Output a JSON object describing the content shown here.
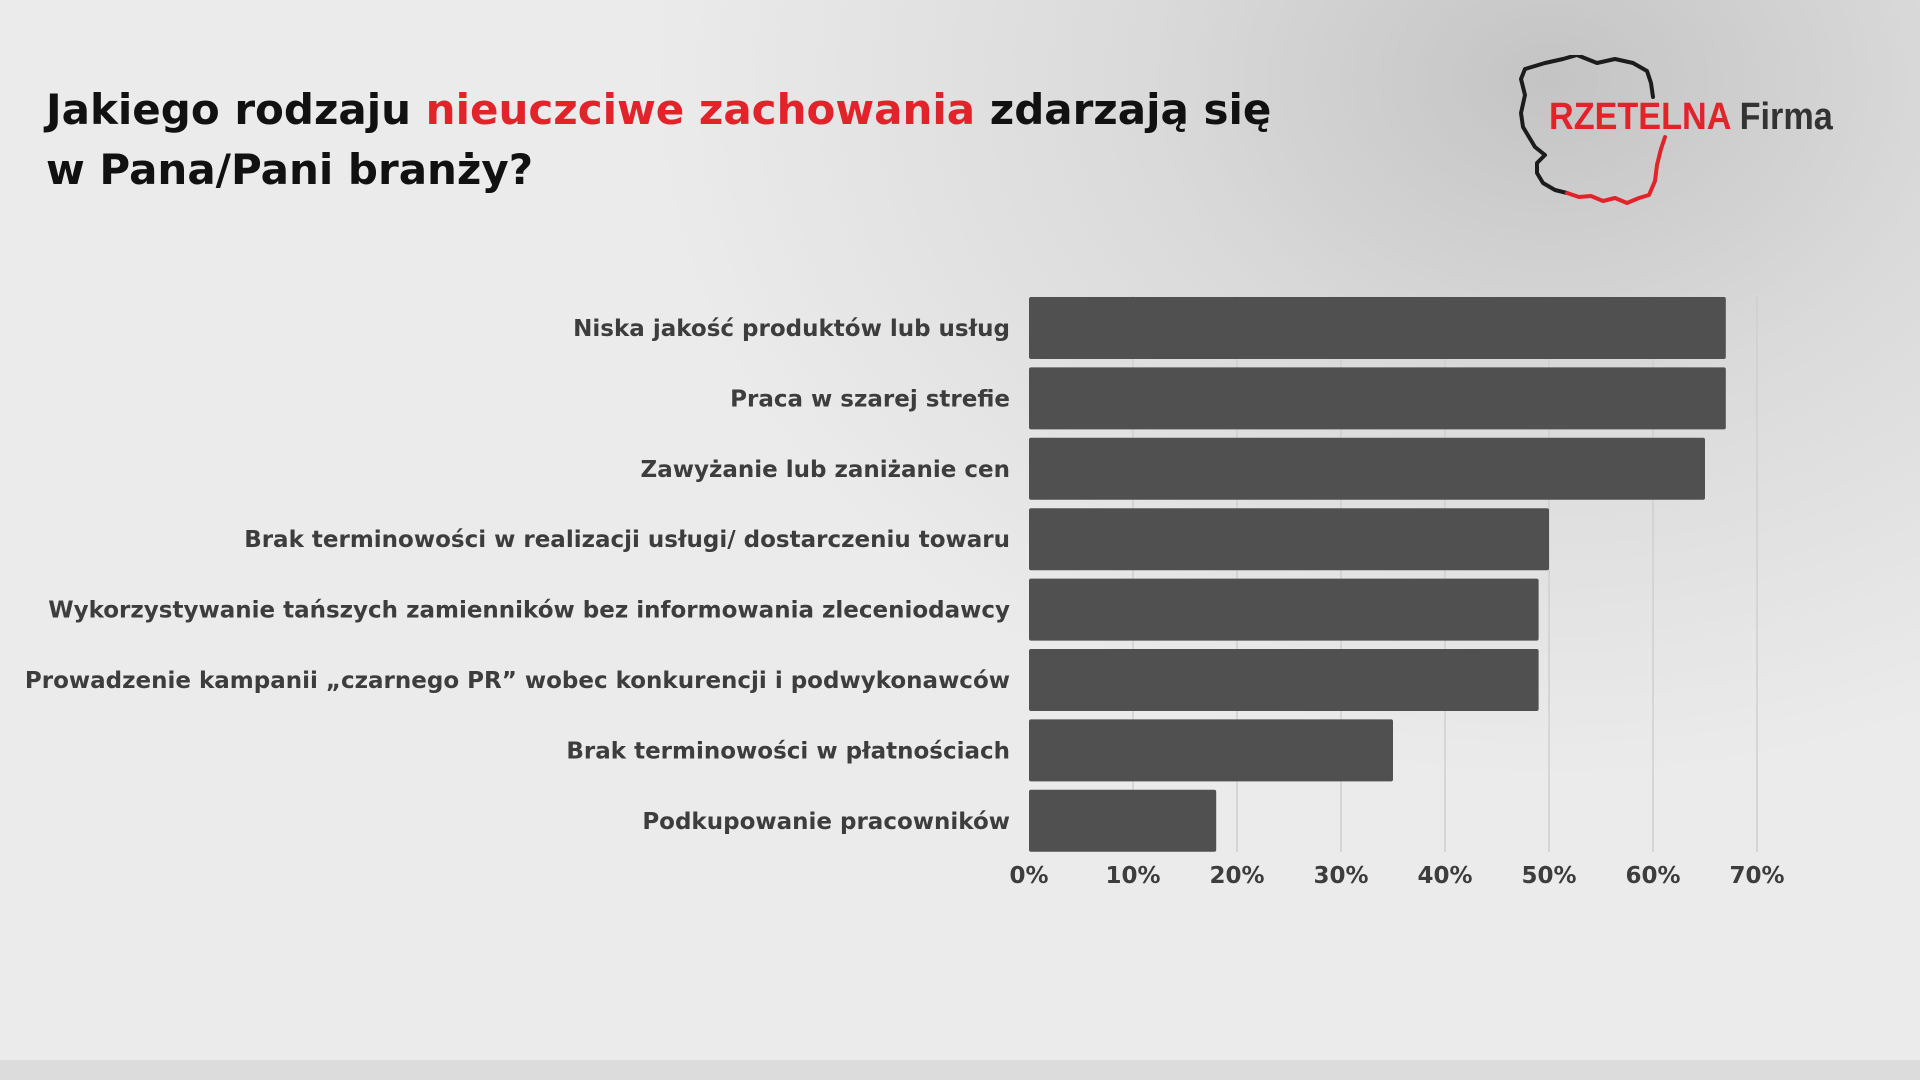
{
  "title": {
    "part1": "Jakiego rodzaju ",
    "highlight": "nieuczciwe zachowania",
    "part2": " zdarzają się",
    "line2": "w Pana/Pani branży?"
  },
  "logo": {
    "red_text": "RZETELNA",
    "dark_text": "Firma"
  },
  "colors": {
    "bar": "#505050",
    "accent": "#e2232a",
    "grid": "#cfcfcf"
  },
  "chart_data": {
    "type": "bar",
    "orientation": "horizontal",
    "categories": [
      "Niska jakość produktów lub usług",
      "Praca w szarej strefie",
      "Zawyżanie lub zaniżanie cen",
      "Brak terminowości w realizacji usługi/ dostarczeniu towaru",
      "Wykorzystywanie tańszych zamienników bez informowania zleceniodawcy",
      "Prowadzenie kampanii „czarnego PR” wobec konkurencji i podwykonawców",
      "Brak terminowości w płatnościach",
      "Podkupowanie pracowników"
    ],
    "values": [
      67,
      67,
      65,
      50,
      49,
      49,
      35,
      18
    ],
    "xlim": [
      0,
      70
    ],
    "ticks": [
      0,
      10,
      20,
      30,
      40,
      50,
      60,
      70
    ],
    "tick_labels": [
      "0%",
      "10%",
      "20%",
      "30%",
      "40%",
      "50%",
      "60%",
      "70%"
    ],
    "grid": "vertical"
  }
}
